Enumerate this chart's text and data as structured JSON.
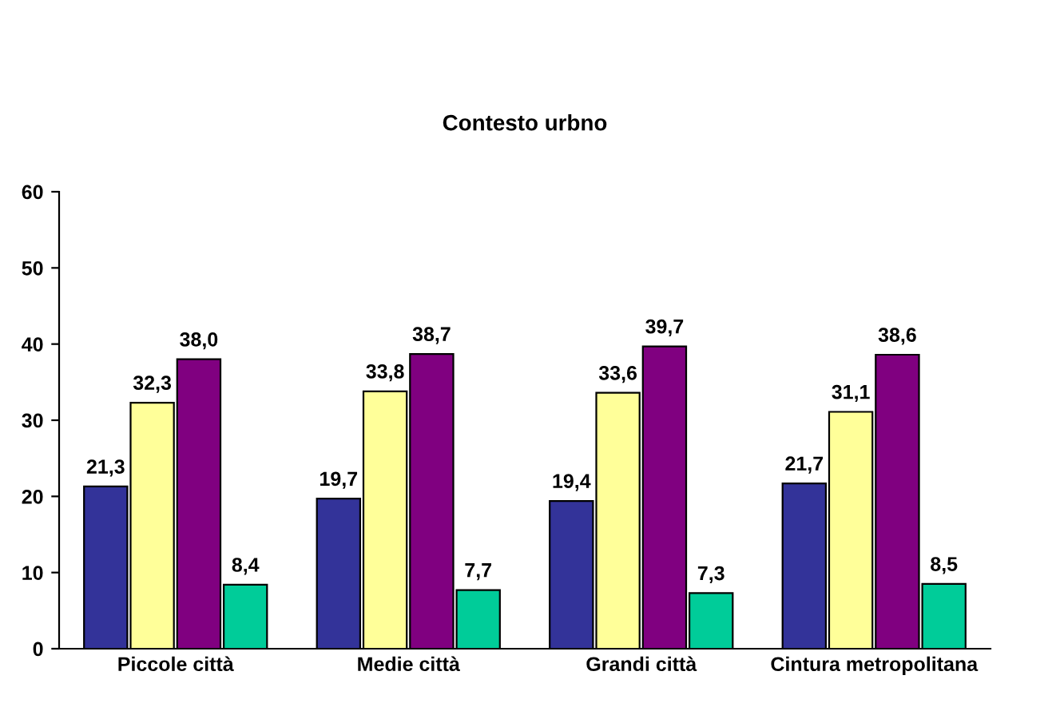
{
  "chart_data": {
    "type": "bar",
    "title": "Contesto urbno",
    "categories": [
      "Piccole città",
      "Medie città",
      "Grandi città",
      "Cintura metropolitana"
    ],
    "series": [
      {
        "color": "#333399",
        "values": [
          21.3,
          19.7,
          19.4,
          21.7
        ],
        "value_labels": [
          "21,3",
          "19,7",
          "19,4",
          "21,7"
        ]
      },
      {
        "color": "#ffff99",
        "values": [
          32.3,
          33.8,
          33.6,
          31.1
        ],
        "value_labels": [
          "32,3",
          "33,8",
          "33,6",
          "31,1"
        ]
      },
      {
        "color": "#800080",
        "values": [
          38.0,
          38.7,
          39.7,
          38.6
        ],
        "value_labels": [
          "38,0",
          "38,7",
          "39,7",
          "38,6"
        ]
      },
      {
        "color": "#00cc99",
        "values": [
          8.4,
          7.7,
          7.3,
          8.5
        ],
        "value_labels": [
          "8,4",
          "7,7",
          "7,3",
          "8,5"
        ]
      }
    ],
    "ylim": [
      0,
      60
    ],
    "yticks": [
      0,
      10,
      20,
      30,
      40,
      50,
      60
    ],
    "grid": false,
    "legend": false
  }
}
